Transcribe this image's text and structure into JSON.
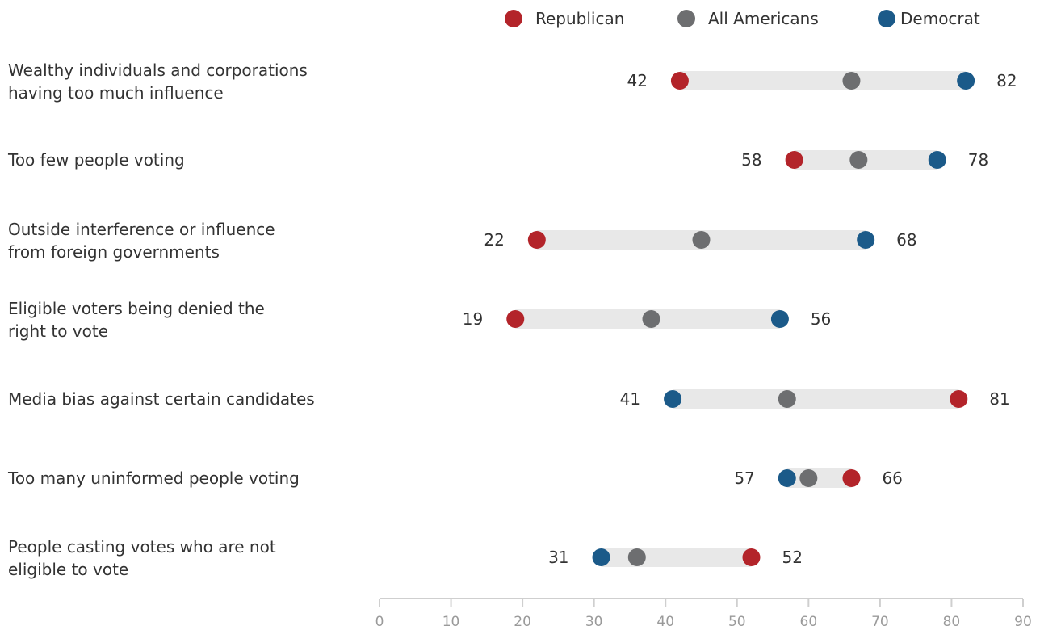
{
  "chart_data": {
    "type": "dumbbell",
    "legend": [
      {
        "name": "Republican",
        "color": "#b3242a"
      },
      {
        "name": "All Americans",
        "color": "#6d6e70"
      },
      {
        "name": "Democrat",
        "color": "#1b5a89"
      }
    ],
    "legend_position": "top-right",
    "range_bar_color": "#e8e8e8",
    "categories": [
      [
        "Wealthy individuals and corporations",
        "having too much influence"
      ],
      [
        "Too few people voting"
      ],
      [
        "Outside interference or influence",
        "from foreign governments"
      ],
      [
        "Eligible voters being denied the",
        "right to vote"
      ],
      [
        "Media bias against certain candidates"
      ],
      [
        "Too many uninformed people voting"
      ],
      [
        "People casting votes who are not",
        "eligible to vote"
      ]
    ],
    "series": [
      {
        "name": "Republican",
        "values": [
          42,
          58,
          22,
          19,
          81,
          66,
          52
        ]
      },
      {
        "name": "All Americans",
        "values": [
          66,
          67,
          45,
          38,
          57,
          60,
          36
        ]
      },
      {
        "name": "Democrat",
        "values": [
          82,
          78,
          68,
          56,
          41,
          57,
          31
        ]
      }
    ],
    "x_axis": {
      "min": 0,
      "max": 90,
      "ticks": [
        0,
        10,
        20,
        30,
        40,
        50,
        60,
        70,
        80,
        90
      ]
    },
    "grid": false
  }
}
